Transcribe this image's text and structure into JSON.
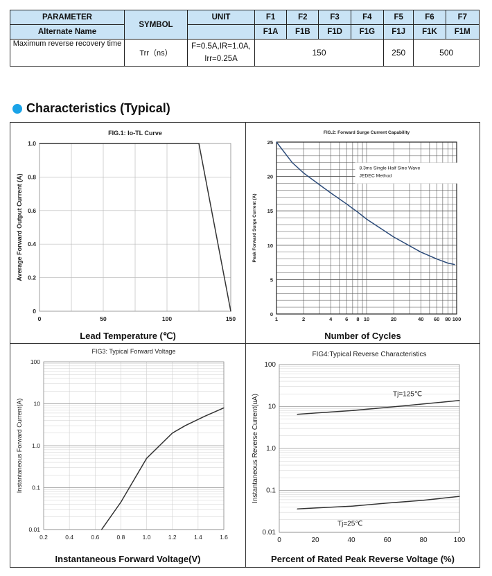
{
  "spec_table": {
    "headers": {
      "parameter": "PARAMETER",
      "alternate": "Alternate Name",
      "symbol": "SYMBOL",
      "unit": "UNIT",
      "parts": [
        "F1",
        "F2",
        "F3",
        "F4",
        "F5",
        "F6",
        "F7"
      ],
      "alt_parts": [
        "F1A",
        "F1B",
        "F1D",
        "F1G",
        "F1J",
        "F1K",
        "F1M"
      ]
    },
    "row": {
      "parameter": "Maximum reverse recovery time",
      "symbol": "Trr（ns）",
      "condition_line1": "F=0.5A,IR=1.0A,",
      "condition_line2": "Irr=0.25A",
      "value_f1_f4": "150",
      "value_f5": "250",
      "value_f6_f7": "500"
    }
  },
  "section_title": "Characteristics (Typical)",
  "chart_data": [
    {
      "type": "line",
      "title": "FIG.1: Io-TL Curve",
      "xlabel": "Lead Temperature (℃)",
      "ylabel": "Average Forward Output Current (A)",
      "xlim": [
        0,
        150
      ],
      "ylim": [
        0,
        1.0
      ],
      "x_ticks": [
        "0",
        "50",
        "100",
        "150"
      ],
      "y_ticks": [
        "0",
        "0.2",
        "0.4",
        "0.6",
        "0.8",
        "1.0"
      ],
      "series": [
        {
          "x": [
            0,
            125,
            150
          ],
          "y": [
            1.0,
            1.0,
            0
          ]
        }
      ],
      "grid": true,
      "color": "#333333"
    },
    {
      "type": "line",
      "title": "FIG.2: Forward Surge Current Capability",
      "xlabel": "Number of Cycles",
      "ylabel": "Peak Forward Surge Current (A)",
      "xscale": "log",
      "xlim": [
        1,
        100
      ],
      "ylim": [
        0,
        25
      ],
      "x_ticks": [
        "1",
        "2",
        "4",
        "6",
        "8",
        "10",
        "20",
        "40",
        "60",
        "80",
        "100"
      ],
      "y_ticks": [
        "0",
        "5",
        "10",
        "15",
        "20",
        "25"
      ],
      "annotation": [
        "8.3ms Single Half Sine Wave",
        "JEDEC Method"
      ],
      "series": [
        {
          "x": [
            1,
            1.5,
            2,
            3,
            4,
            6,
            8,
            10,
            20,
            40,
            60,
            80,
            95
          ],
          "y": [
            25,
            22,
            20.5,
            18.8,
            17.6,
            16,
            14.8,
            13.8,
            11.2,
            9,
            8,
            7.4,
            7.2
          ]
        }
      ],
      "grid": true,
      "color": "#2d4c7a"
    },
    {
      "type": "line",
      "title": "FIG3:  Typical Forward Voltage",
      "xlabel": "Instantaneous Forward Voltage(V)",
      "ylabel": "Instantaneous Forward Current(A)",
      "yscale": "log",
      "xlim": [
        0.2,
        1.6
      ],
      "ylim": [
        0.01,
        100
      ],
      "x_ticks": [
        "0.2",
        "0.4",
        "0.6",
        "0.8",
        "1.0",
        "1.2",
        "1.4",
        "1.6"
      ],
      "y_ticks": [
        "0.01",
        "0.1",
        "1.0",
        "10",
        "100"
      ],
      "series": [
        {
          "x": [
            0.65,
            0.8,
            1.0,
            1.2,
            1.3,
            1.45,
            1.6
          ],
          "y": [
            0.01,
            0.045,
            0.5,
            2,
            3,
            5,
            8
          ]
        }
      ],
      "grid": true,
      "color": "#333333"
    },
    {
      "type": "line",
      "title": "FIG4:Typical Reverse Characteristics",
      "xlabel": "Percent of Rated Peak Reverse Voltage (%)",
      "ylabel": "Instantaneous Reverse Current(uA)",
      "yscale": "log",
      "xlim": [
        0,
        100
      ],
      "ylim": [
        0.01,
        100
      ],
      "x_ticks": [
        "0",
        "20",
        "40",
        "60",
        "80",
        "100"
      ],
      "y_ticks": [
        "0.01",
        "0.1",
        "1.0",
        "10",
        "100"
      ],
      "series": [
        {
          "name": "Tj=125℃",
          "x": [
            10,
            20,
            40,
            60,
            80,
            100
          ],
          "y": [
            6.5,
            7,
            8,
            9.5,
            11.5,
            14
          ]
        },
        {
          "name": "Tj=25℃",
          "x": [
            10,
            20,
            40,
            60,
            80,
            100
          ],
          "y": [
            0.036,
            0.038,
            0.042,
            0.05,
            0.058,
            0.072
          ]
        }
      ],
      "grid": true,
      "color": "#333333"
    }
  ]
}
